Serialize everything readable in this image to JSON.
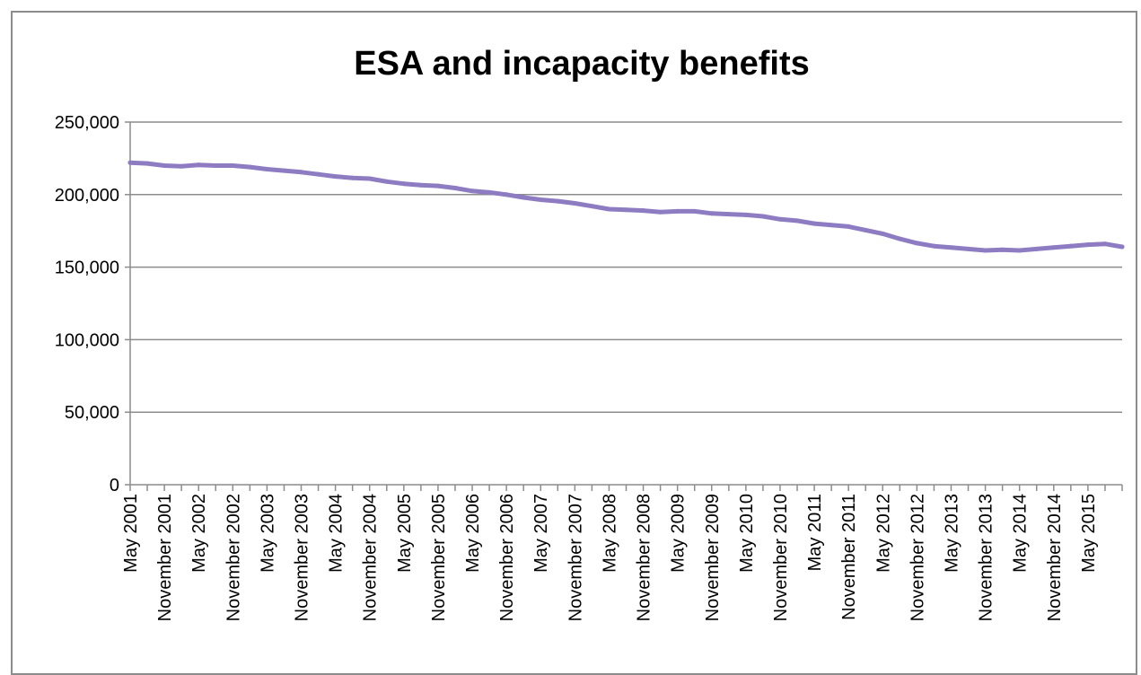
{
  "chart_data": {
    "type": "line",
    "title": "ESA and incapacity benefits",
    "xlabel": "",
    "ylabel": "",
    "ylim": [
      0,
      250000
    ],
    "y_ticks": [
      "0",
      "50,000",
      "100,000",
      "150,000",
      "200,000",
      "250,000"
    ],
    "y_tick_values": [
      0,
      50000,
      100000,
      150000,
      200000,
      250000
    ],
    "x_tick_labels": [
      "May 2001",
      "November 2001",
      "May 2002",
      "November 2002",
      "May 2003",
      "November 2003",
      "May 2004",
      "November 2004",
      "May 2005",
      "November 2005",
      "May 2006",
      "November 2006",
      "May 2007",
      "November 2007",
      "May 2008",
      "November 2008",
      "May 2009",
      "November 2009",
      "May 2010",
      "November 2010",
      "May 2011",
      "November 2011",
      "May 2012",
      "November 2012",
      "May 2013",
      "November 2013",
      "May 2014",
      "November 2014",
      "May 2015"
    ],
    "grid": true,
    "line_color": "#8e7cc3",
    "series": [
      {
        "values": [
          222000,
          221500,
          220000,
          219500,
          220500,
          220000,
          220000,
          219000,
          217500,
          216500,
          215500,
          214000,
          212500,
          211500,
          211000,
          209000,
          207500,
          206500,
          206000,
          204500,
          202500,
          201500,
          200000,
          198000,
          196500,
          195500,
          194000,
          192000,
          190000,
          189500,
          189000,
          188000,
          188500,
          188500,
          187000,
          186500,
          186000,
          185000,
          183000,
          182000,
          180000,
          179000,
          178000,
          175500,
          173000,
          169500,
          166500,
          164500,
          163500,
          162500,
          161500,
          162000,
          161500,
          162500,
          163500,
          164500,
          165500,
          166000,
          164000
        ]
      }
    ]
  }
}
